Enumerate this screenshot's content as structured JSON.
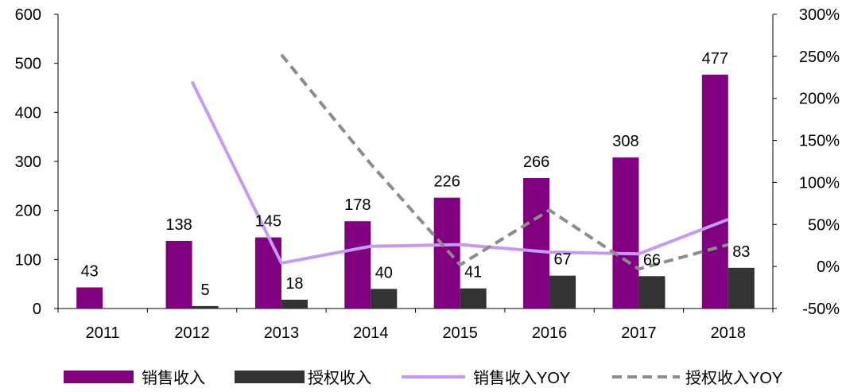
{
  "chart_data": {
    "type": "bar",
    "categories": [
      "2011",
      "2012",
      "2013",
      "2014",
      "2015",
      "2016",
      "2017",
      "2018"
    ],
    "y_left": {
      "min": 0,
      "max": 600,
      "ticks": [
        "0",
        "100",
        "200",
        "300",
        "400",
        "500",
        "600"
      ]
    },
    "y_right": {
      "min": -0.5,
      "max": 3.0,
      "ticks": [
        "-50%",
        "0%",
        "50%",
        "100%",
        "150%",
        "200%",
        "250%",
        "300%"
      ]
    },
    "grid": false,
    "legend_position": "bottom",
    "series": [
      {
        "name": "销售收入",
        "kind": "bar",
        "axis": "left",
        "color": "#800080",
        "values": [
          43,
          138,
          145,
          178,
          226,
          266,
          308,
          477
        ],
        "labels": [
          "43",
          "138",
          "145",
          "178",
          "226",
          "266",
          "308",
          "477"
        ]
      },
      {
        "name": "授权收入",
        "kind": "bar",
        "axis": "left",
        "color": "#333333",
        "values": [
          null,
          5,
          18,
          40,
          41,
          67,
          66,
          83
        ],
        "labels": [
          "",
          "5",
          "18",
          "40",
          "41",
          "67",
          "66",
          "83"
        ]
      },
      {
        "name": "销售收入YOY",
        "kind": "line",
        "axis": "right",
        "color": "#c59af5",
        "dash": false,
        "values": [
          null,
          2.2,
          0.04,
          0.24,
          0.26,
          0.17,
          0.15,
          0.56
        ]
      },
      {
        "name": "授权收入YOY",
        "kind": "line",
        "axis": "right",
        "color": "#8c8c8c",
        "dash": true,
        "values": [
          null,
          null,
          2.52,
          1.22,
          0.02,
          0.67,
          -0.03,
          0.26
        ]
      }
    ]
  }
}
